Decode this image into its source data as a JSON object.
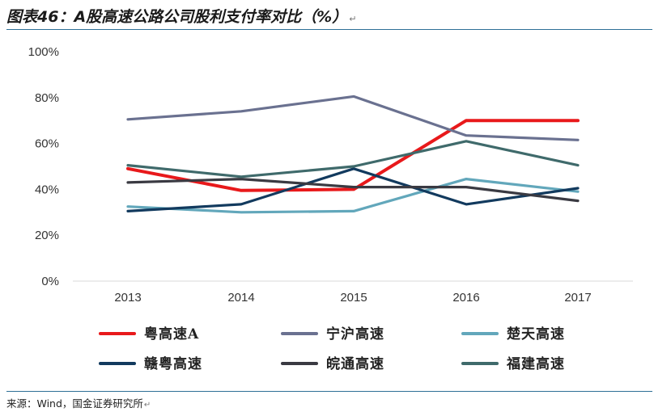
{
  "header": {
    "title": "图表46：A股高速公路公司股利支付率对比（%）",
    "title_mark": "↵"
  },
  "footer": {
    "source": "来源：Wind，国金证券研究所",
    "source_mark": "↵"
  },
  "chart_data": {
    "type": "line",
    "categories": [
      "2013",
      "2014",
      "2015",
      "2016",
      "2017"
    ],
    "y_ticks": [
      "0%",
      "20%",
      "40%",
      "60%",
      "80%",
      "100%"
    ],
    "ylim": [
      0,
      100
    ],
    "grid": false,
    "legend_position": "bottom",
    "series": [
      {
        "name": "粤高速A",
        "color": "#e8191b",
        "values": [
          49,
          39.5,
          40,
          70,
          70
        ]
      },
      {
        "name": "宁沪高速",
        "color": "#6a7190",
        "values": [
          70.5,
          74,
          80.5,
          63.5,
          61.5
        ]
      },
      {
        "name": "楚天高速",
        "color": "#62a7bb",
        "values": [
          32.5,
          30,
          30.5,
          44.5,
          39
        ]
      },
      {
        "name": "赣粤高速",
        "color": "#123a5e",
        "values": [
          30.5,
          33.5,
          49,
          33.5,
          40.5
        ]
      },
      {
        "name": "皖通高速",
        "color": "#3a3a42",
        "values": [
          43,
          44.5,
          41,
          41,
          35
        ]
      },
      {
        "name": "福建高速",
        "color": "#3f6a6b",
        "values": [
          50.5,
          45.5,
          50,
          61,
          50.5
        ]
      }
    ]
  }
}
